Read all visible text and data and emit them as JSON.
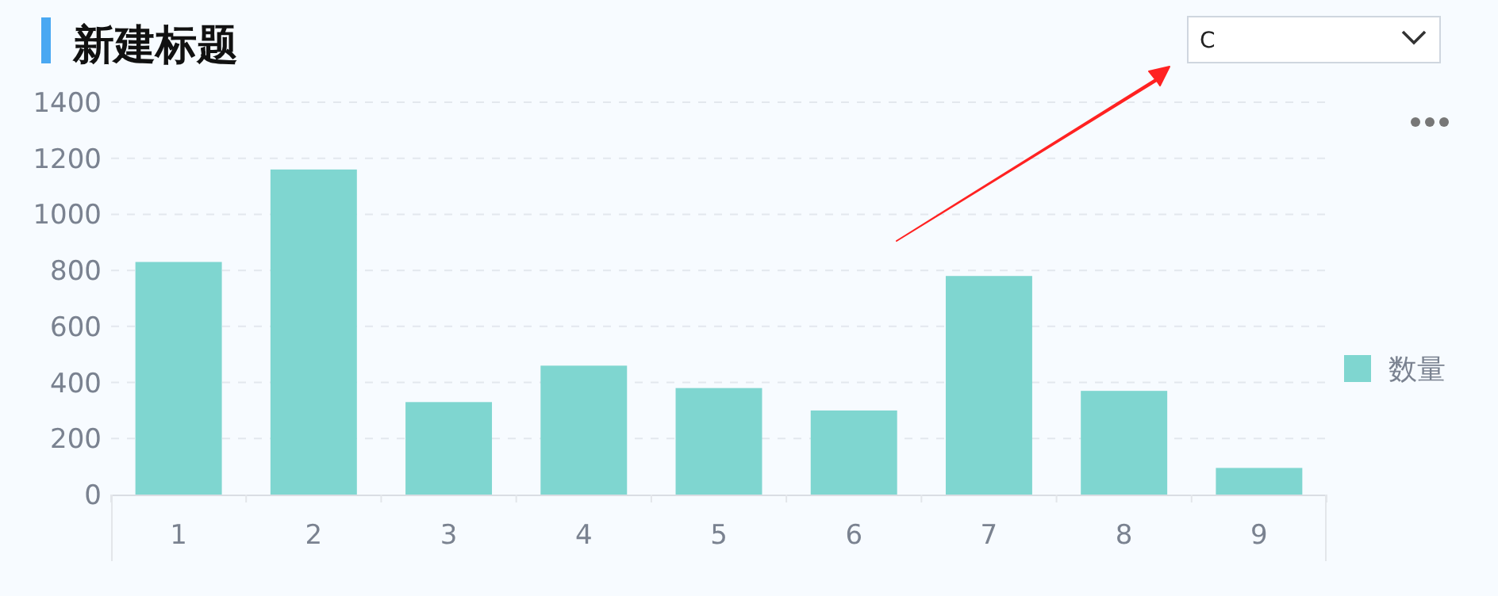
{
  "chart_data": {
    "type": "bar",
    "title": "新建标题",
    "categories": [
      "1",
      "2",
      "3",
      "4",
      "5",
      "6",
      "7",
      "8",
      "9"
    ],
    "series": [
      {
        "name": "数量",
        "color": "#7fd6d0",
        "values": [
          830,
          1160,
          330,
          460,
          380,
          300,
          780,
          370,
          95
        ]
      }
    ],
    "ylim": [
      0,
      1400
    ],
    "yticks": [
      0,
      200,
      400,
      600,
      800,
      1000,
      1200,
      1400
    ],
    "grid": "y",
    "legend": "right",
    "annotations": [
      "C"
    ]
  }
}
